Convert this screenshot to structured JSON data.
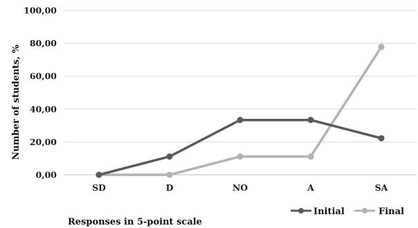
{
  "chart_data": {
    "type": "line",
    "categories": [
      "SD",
      "D",
      "NO",
      "A",
      "SA"
    ],
    "series": [
      {
        "name": "Initial",
        "values": [
          0,
          11.11,
          33.33,
          33.33,
          22.22
        ],
        "color": "#595959"
      },
      {
        "name": "Final",
        "values": [
          0,
          0,
          11.11,
          11.11,
          77.78
        ],
        "color": "#b3b3b3"
      }
    ],
    "yticks": [
      "0,00",
      "20,00",
      "40,00",
      "60,00",
      "80,00",
      "100,00"
    ],
    "ylim": [
      0,
      100
    ],
    "xlabel": "Responses in 5-point scale",
    "ylabel": "Number of students, %",
    "grid": true,
    "legend_position": "bottom-right"
  }
}
